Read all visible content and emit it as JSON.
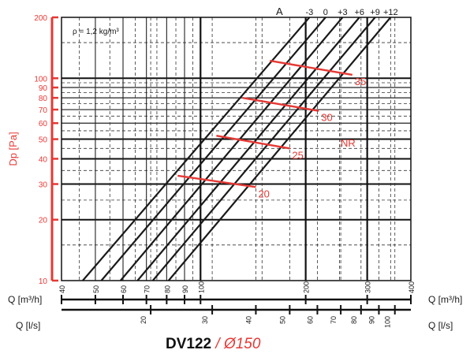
{
  "chart_data": {
    "type": "line",
    "title": "DV122",
    "subtitle": "/ Ø150",
    "density_label": "ρ = 1,2 kg/m³",
    "ylabel": "Dp [Pa]",
    "xlabel_m3h": "Q [m³/h]",
    "xlabel_ls": "Q [l/s]",
    "y_scale": "log",
    "x_scale": "log",
    "ylim": [
      10,
      200
    ],
    "xlim_m3h": [
      40,
      400
    ],
    "grid": true,
    "y_ticks": [
      "10",
      "20",
      "30",
      "40",
      "50",
      "60",
      "70",
      "80",
      "90",
      "100",
      "200"
    ],
    "x_ticks_m3h": [
      "40",
      "50",
      "60",
      "70",
      "80",
      "90",
      "100",
      "200",
      "300",
      "400"
    ],
    "x_ticks_ls": [
      "20",
      "30",
      "40",
      "50",
      "60",
      "70",
      "80",
      "90",
      "100"
    ],
    "setting_axis_label": "A",
    "series": [
      {
        "name": "-3",
        "points": [
          [
            46,
            10
          ],
          [
            205,
            200
          ]
        ]
      },
      {
        "name": "0",
        "points": [
          [
            52,
            10
          ],
          [
            228,
            200
          ]
        ]
      },
      {
        "name": "+3",
        "points": [
          [
            59,
            10
          ],
          [
            255,
            200
          ]
        ]
      },
      {
        "name": "+6",
        "points": [
          [
            66,
            10
          ],
          [
            285,
            200
          ]
        ]
      },
      {
        "name": "+9",
        "points": [
          [
            73,
            10
          ],
          [
            316,
            200
          ]
        ]
      },
      {
        "name": "+12",
        "points": [
          [
            81,
            10
          ],
          [
            350,
            200
          ]
        ]
      }
    ],
    "nr_label": "NR",
    "nr_curves": [
      {
        "name": "20",
        "points": [
          [
            86,
            33
          ],
          [
            144,
            29
          ]
        ]
      },
      {
        "name": "25",
        "points": [
          [
            111,
            52
          ],
          [
            180,
            45
          ]
        ]
      },
      {
        "name": "30",
        "points": [
          [
            132,
            80
          ],
          [
            218,
            69
          ]
        ]
      },
      {
        "name": "35",
        "points": [
          [
            158,
            122
          ],
          [
            272,
            104
          ]
        ]
      }
    ]
  },
  "colors": {
    "accent": "#e53935",
    "line": "#1a1a1a"
  }
}
